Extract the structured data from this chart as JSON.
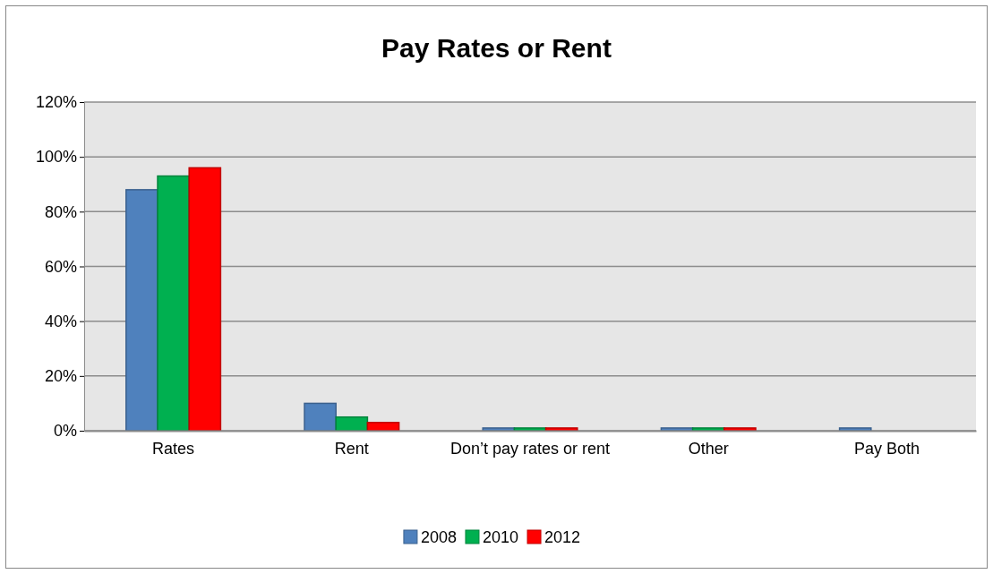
{
  "chart_data": {
    "type": "bar",
    "title": "Pay Rates or Rent",
    "categories": [
      "Rates",
      "Rent",
      "Don’t pay rates or rent",
      "Other",
      "Pay Both"
    ],
    "series": [
      {
        "name": "2008",
        "color": "#4f81bd",
        "values": [
          88,
          10,
          1,
          1,
          1
        ]
      },
      {
        "name": "2010",
        "color": "#00b050",
        "values": [
          93,
          5,
          1,
          1,
          0
        ]
      },
      {
        "name": "2012",
        "color": "#ff0000",
        "values": [
          96,
          3,
          1,
          1,
          0
        ]
      }
    ],
    "ylim": [
      0,
      120
    ],
    "yticks": [
      {
        "value": 0,
        "label": "0%"
      },
      {
        "value": 20,
        "label": "20%"
      },
      {
        "value": 40,
        "label": "40%"
      },
      {
        "value": 60,
        "label": "60%"
      },
      {
        "value": 80,
        "label": "80%"
      },
      {
        "value": 100,
        "label": "100%"
      },
      {
        "value": 120,
        "label": "120%"
      }
    ],
    "grid": "y",
    "legend": "bottom"
  }
}
